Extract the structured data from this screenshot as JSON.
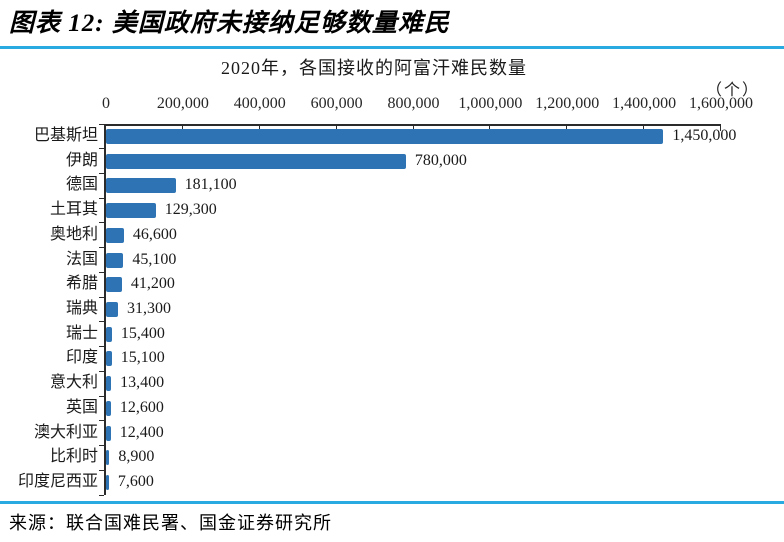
{
  "figure": {
    "title": "图表 12: 美国政府未接纳足够数量难民",
    "source": "来源：联合国难民署、国金证券研究所"
  },
  "colors": {
    "bar": "#2E74B5",
    "rule": "#29ABE2",
    "axis": "#2b2b2b",
    "text": "#1a1a1a"
  },
  "chart_data": {
    "type": "bar",
    "orientation": "horizontal",
    "title": "2020年，各国接收的阿富汗难民数量",
    "unit_label": "（个）",
    "categories": [
      "巴基斯坦",
      "伊朗",
      "德国",
      "土耳其",
      "奥地利",
      "法国",
      "希腊",
      "瑞典",
      "瑞士",
      "印度",
      "意大利",
      "英国",
      "澳大利亚",
      "比利时",
      "印度尼西亚"
    ],
    "values": [
      1450000,
      780000,
      181100,
      129300,
      46600,
      45100,
      41200,
      31300,
      15400,
      15100,
      13400,
      12600,
      12400,
      8900,
      7600
    ],
    "value_labels": [
      "1,450,000",
      "780,000",
      "181,100",
      "129,300",
      "46,600",
      "45,100",
      "41,200",
      "31,300",
      "15,400",
      "15,100",
      "13,400",
      "12,600",
      "12,400",
      "8,900",
      "7,600"
    ],
    "xlim": [
      0,
      1600000
    ],
    "x_ticks": [
      0,
      200000,
      400000,
      600000,
      800000,
      1000000,
      1200000,
      1400000,
      1600000
    ],
    "x_tick_labels": [
      "0",
      "200,000",
      "400,000",
      "600,000",
      "800,000",
      "1,000,000",
      "1,200,000",
      "1,400,000",
      "1,600,000"
    ],
    "grid": false,
    "legend": "none",
    "value_axis_position": "top"
  }
}
